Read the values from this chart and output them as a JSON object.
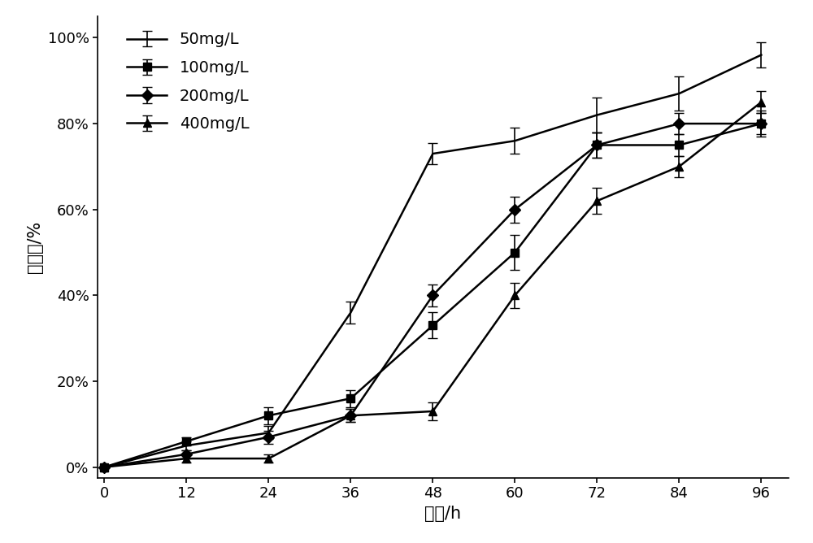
{
  "x": [
    0,
    12,
    24,
    36,
    48,
    60,
    72,
    84,
    96
  ],
  "series": [
    {
      "label": "50mg/L",
      "values": [
        0,
        0.05,
        0.08,
        0.36,
        0.73,
        0.76,
        0.82,
        0.87,
        0.96
      ],
      "yerr": [
        0.0,
        0.01,
        0.015,
        0.025,
        0.025,
        0.03,
        0.04,
        0.04,
        0.03
      ],
      "marker": "None",
      "markersize": 0
    },
    {
      "label": "100mg/L",
      "values": [
        0,
        0.06,
        0.12,
        0.16,
        0.33,
        0.5,
        0.75,
        0.75,
        0.8
      ],
      "yerr": [
        0.0,
        0.01,
        0.02,
        0.02,
        0.03,
        0.04,
        0.03,
        0.025,
        0.03
      ],
      "marker": "s",
      "markersize": 7
    },
    {
      "label": "200mg/L",
      "values": [
        0,
        0.03,
        0.07,
        0.12,
        0.4,
        0.6,
        0.75,
        0.8,
        0.8
      ],
      "yerr": [
        0.0,
        0.01,
        0.015,
        0.015,
        0.025,
        0.03,
        0.03,
        0.025,
        0.025
      ],
      "marker": "D",
      "markersize": 7
    },
    {
      "label": "400mg/L",
      "values": [
        0,
        0.02,
        0.02,
        0.12,
        0.13,
        0.4,
        0.62,
        0.7,
        0.85
      ],
      "yerr": [
        0.0,
        0.01,
        0.01,
        0.015,
        0.02,
        0.03,
        0.03,
        0.025,
        0.025
      ],
      "marker": "^",
      "markersize": 7
    }
  ],
  "xlabel": "时间/h",
  "ylabel": "降解率/%",
  "xlim": [
    -1,
    100
  ],
  "ylim": [
    -0.025,
    1.05
  ],
  "yticks": [
    0,
    0.2,
    0.4,
    0.6,
    0.8,
    1.0
  ],
  "ytick_labels": [
    "0%",
    "20%",
    "40%",
    "60%",
    "80%",
    "100%"
  ],
  "xticks": [
    0,
    12,
    24,
    36,
    48,
    60,
    72,
    84,
    96
  ],
  "background_color": "#ffffff",
  "color": "#000000",
  "linewidth": 1.8,
  "capsize": 4,
  "elinewidth": 1.2,
  "legend_fontsize": 14,
  "axis_fontsize": 15,
  "tick_fontsize": 13
}
